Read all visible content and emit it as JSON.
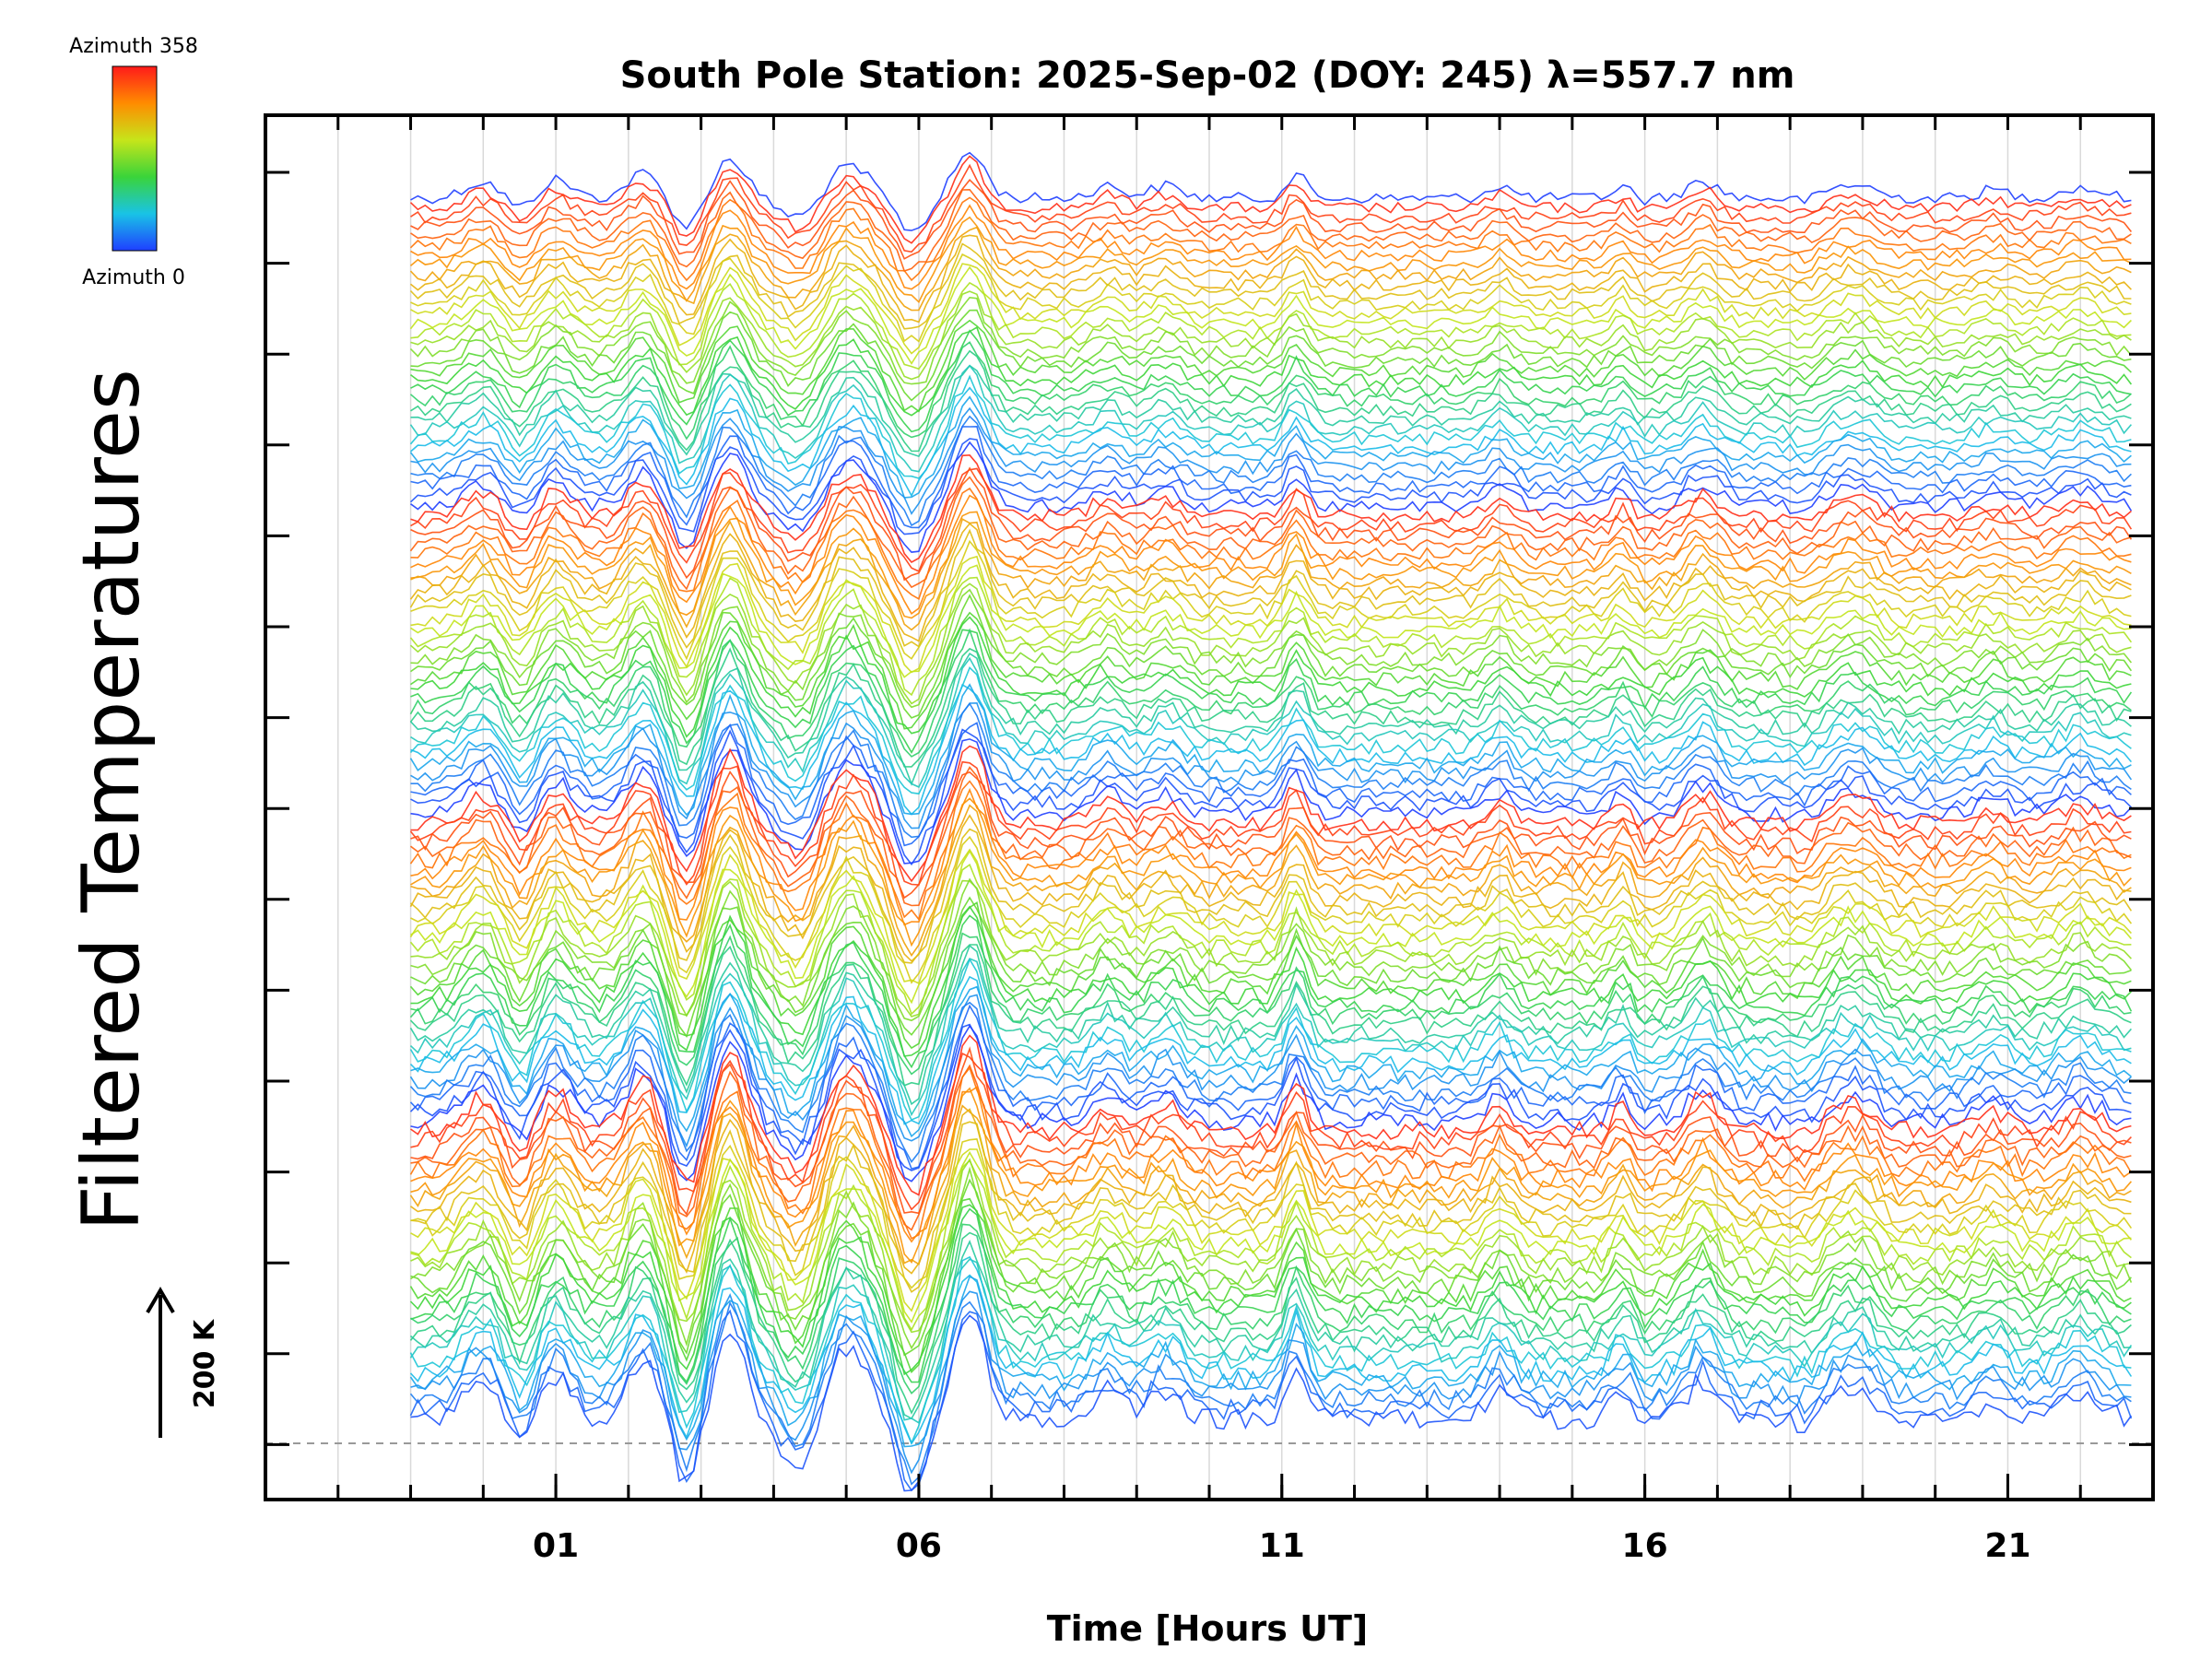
{
  "chart_data": {
    "type": "line",
    "title": "South Pole Station: 2025-Sep-02 (DOY: 245) λ=557.7 nm",
    "xlabel": "Time [Hours UT]",
    "ylabel": "Filtered Temperatures",
    "xlim": [
      -3,
      23
    ],
    "x_tick_labels": [
      {
        "x": 1,
        "label": "01"
      },
      {
        "x": 6,
        "label": "06"
      },
      {
        "x": 11,
        "label": "11"
      },
      {
        "x": 16,
        "label": "16"
      },
      {
        "x": 21,
        "label": "21"
      }
    ],
    "x_minor_tick_step": 1,
    "x_range_of_data": [
      -1,
      22.75
    ],
    "series_count": 128,
    "series_spacing_note": "stacked keogram-style traces, offset vertically",
    "vertical_grid": true,
    "baseline_dashed": true,
    "scale_bar": {
      "label": "200 K",
      "value_k": 200
    },
    "colorbar": {
      "top_label": "Azimuth  358",
      "bottom_label": "Azimuth  0",
      "min": 0,
      "max": 358,
      "colormap": "rainbow",
      "stops": [
        "#1f3fff",
        "#19c3e6",
        "#3ad43a",
        "#c6e51a",
        "#ff8c00",
        "#ff1a1a"
      ]
    }
  },
  "colors": {
    "background": "#ffffff",
    "axes": "#000000",
    "grid": "#d9d9d9",
    "baseline": "#999999"
  }
}
